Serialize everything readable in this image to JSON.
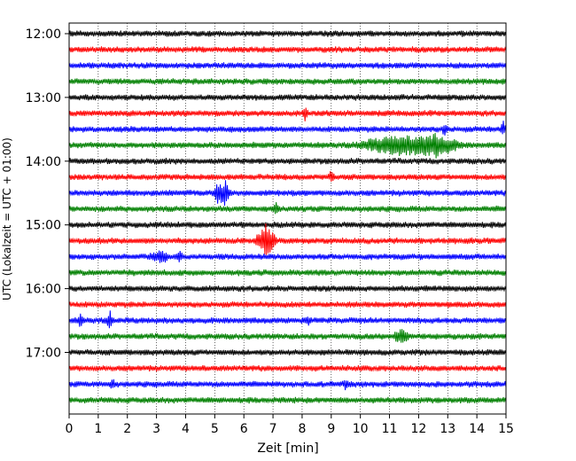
{
  "chart_data": {
    "type": "line",
    "title": "",
    "xlabel": "Zeit  [min]",
    "ylabel": "UTC (Lokalzeit = UTC + 01:00)",
    "xlim": [
      0,
      15
    ],
    "x_ticks": [
      0,
      1,
      2,
      3,
      4,
      5,
      6,
      7,
      8,
      9,
      10,
      11,
      12,
      13,
      14,
      15
    ],
    "x_tick_labels": [
      "0",
      "1",
      "2",
      "3",
      "4",
      "5",
      "6",
      "7",
      "8",
      "9",
      "10",
      "11",
      "12",
      "13",
      "14",
      "15"
    ],
    "y_ticks": [
      "12:00",
      "13:00",
      "14:00",
      "15:00",
      "16:00",
      "17:00"
    ],
    "y_range": [
      "11:50",
      "17:58"
    ],
    "grid": "vertical dotted at each minute",
    "legend": "none",
    "trace_interval_minutes": 15,
    "traces_start": "12:00",
    "trace_color_cycle": [
      "#000000",
      "#ff0000",
      "#0000ff",
      "#008000"
    ],
    "traces": [
      {
        "start": "12:00",
        "color": "#000000",
        "events": []
      },
      {
        "start": "12:15",
        "color": "#ff0000",
        "events": []
      },
      {
        "start": "12:30",
        "color": "#0000ff",
        "events": []
      },
      {
        "start": "12:45",
        "color": "#008000",
        "events": []
      },
      {
        "start": "13:00",
        "color": "#000000",
        "events": []
      },
      {
        "start": "13:15",
        "color": "#ff0000",
        "events": [
          {
            "t": 8.1,
            "amp": 0.6
          }
        ]
      },
      {
        "start": "13:30",
        "color": "#0000ff",
        "events": [
          {
            "t": 12.9,
            "amp": 0.5
          },
          {
            "t": 14.9,
            "amp": 0.6
          }
        ]
      },
      {
        "start": "13:45",
        "color": "#008000",
        "events": [
          {
            "t": 11.3,
            "amp": 0.9,
            "dur": 1.6
          },
          {
            "t": 12.6,
            "amp": 0.9,
            "dur": 1.0
          }
        ]
      },
      {
        "start": "14:00",
        "color": "#000000",
        "events": []
      },
      {
        "start": "14:15",
        "color": "#ff0000",
        "events": [
          {
            "t": 9.0,
            "amp": 0.4
          }
        ]
      },
      {
        "start": "14:30",
        "color": "#0000ff",
        "events": [
          {
            "t": 5.1,
            "amp": 0.8,
            "dur": 0.2
          },
          {
            "t": 5.35,
            "amp": 1.1,
            "dur": 0.2
          }
        ]
      },
      {
        "start": "14:45",
        "color": "#008000",
        "events": [
          {
            "t": 7.1,
            "amp": 0.6
          }
        ]
      },
      {
        "start": "15:00",
        "color": "#000000",
        "events": []
      },
      {
        "start": "15:15",
        "color": "#ff0000",
        "events": [
          {
            "t": 6.75,
            "amp": 1.5,
            "dur": 0.4
          }
        ]
      },
      {
        "start": "15:30",
        "color": "#0000ff",
        "events": [
          {
            "t": 3.1,
            "amp": 0.5,
            "dur": 0.4
          },
          {
            "t": 3.8,
            "amp": 0.4
          }
        ]
      },
      {
        "start": "15:45",
        "color": "#008000",
        "events": []
      },
      {
        "start": "16:00",
        "color": "#000000",
        "events": []
      },
      {
        "start": "16:15",
        "color": "#ff0000",
        "events": []
      },
      {
        "start": "16:30",
        "color": "#0000ff",
        "events": [
          {
            "t": 0.4,
            "amp": 0.5
          },
          {
            "t": 1.4,
            "amp": 0.8
          },
          {
            "t": 8.2,
            "amp": 0.4
          }
        ]
      },
      {
        "start": "16:45",
        "color": "#008000",
        "events": [
          {
            "t": 11.4,
            "amp": 0.6,
            "dur": 0.3
          }
        ]
      },
      {
        "start": "17:00",
        "color": "#000000",
        "events": []
      },
      {
        "start": "17:15",
        "color": "#ff0000",
        "events": []
      },
      {
        "start": "17:30",
        "color": "#0000ff",
        "events": [
          {
            "t": 1.5,
            "amp": 0.4
          },
          {
            "t": 9.5,
            "amp": 0.4
          }
        ]
      },
      {
        "start": "17:45",
        "color": "#008000",
        "events": []
      }
    ]
  }
}
